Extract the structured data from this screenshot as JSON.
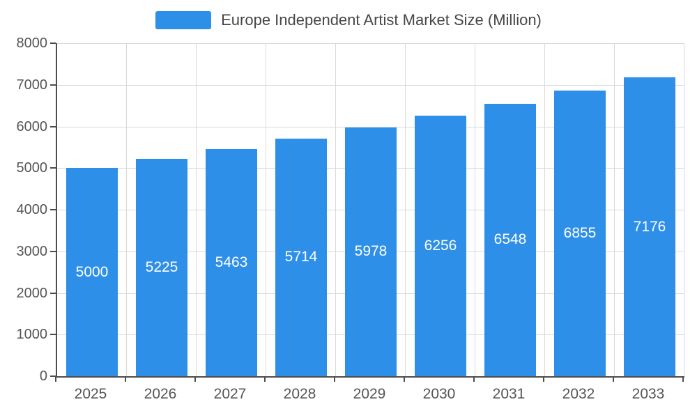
{
  "legend": {
    "label": "Europe Independent Artist Market Size (Million)"
  },
  "chart_data": {
    "type": "bar",
    "title": "Europe Independent Artist Market Size (Million)",
    "categories": [
      "2025",
      "2026",
      "2027",
      "2028",
      "2029",
      "2030",
      "2031",
      "2032",
      "2033"
    ],
    "values": [
      5000,
      5225,
      5463,
      5714,
      5978,
      6256,
      6548,
      6855,
      7176
    ],
    "xlabel": "",
    "ylabel": "",
    "ylim": [
      0,
      8000
    ],
    "ytick_step": 1000,
    "grid": true,
    "legend_position": "top",
    "bar_color": "#2E8FE8",
    "bar_label_color": "#ffffff",
    "axis_label_color": "#555555",
    "gridline_color": "#d9d9d9",
    "axis_line_color": "#4d4d4d"
  }
}
